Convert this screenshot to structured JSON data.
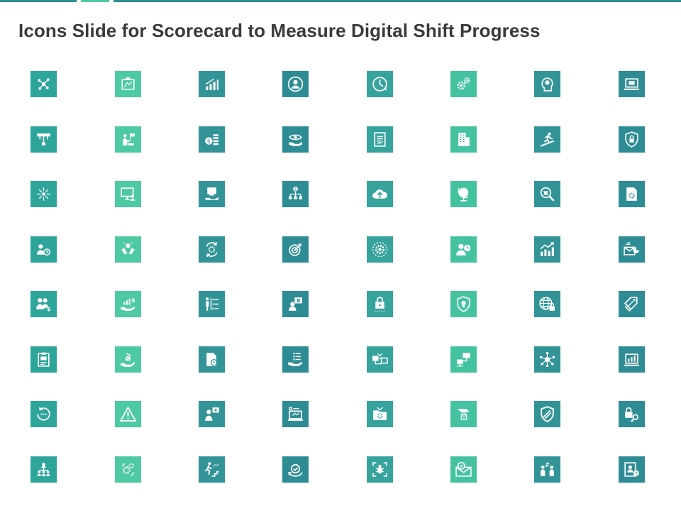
{
  "title": "Icons Slide for Scorecard to Measure Digital Shift Progress",
  "colors": {
    "teal_dark": "#2e8c95",
    "teal_mid": "#3aa39d",
    "mint": "#4dc9a4",
    "icon_fg": "#ffffff",
    "title_text": "#3a3a3a"
  },
  "column_colors": [
    "#2ea59b",
    "#4dc9a4",
    "#329497",
    "#2e8c95",
    "#36a39d",
    "#45c3a1",
    "#329497",
    "#2e8c95"
  ],
  "icons": [
    [
      "network-nodes-icon",
      "blueprint-board-icon",
      "bar-growth-icon",
      "person-circle-icon",
      "clock-refresh-icon",
      "gears-icon",
      "human-brain-icon",
      "laptop-document-icon"
    ],
    [
      "flowchart-icon",
      "presenter-flag-icon",
      "dollar-coins-icon",
      "eye-hand-icon",
      "report-document-icon",
      "office-building-icon",
      "runner-ramp-icon",
      "shield-lock-icon"
    ],
    [
      "sparkle-network-icon",
      "monitor-user-icon",
      "computer-hand-icon",
      "dollar-hierarchy-icon",
      "cloud-upload-icon",
      "globe-stand-icon",
      "bug-search-icon",
      "file-gear-icon"
    ],
    [
      "user-clock-icon",
      "hands-care-icon",
      "gear-refresh-icon",
      "target-icon",
      "gear-circle-icon",
      "user-clock-badge-icon",
      "growth-chart-icon",
      "email-chart-icon"
    ],
    [
      "users-dollar-icon",
      "hand-money-growth-icon",
      "person-checklist-icon",
      "user-x-board-icon",
      "padlock-password-icon",
      "shield-bulb-icon",
      "globe-lock-icon",
      "price-tags-icon"
    ],
    [
      "clipboard-report-icon",
      "hand-coin-icon",
      "file-clock-icon",
      "hand-checklist-icon",
      "connected-windows-icon",
      "network-computers-icon",
      "hub-network-icon",
      "laptop-chart-icon"
    ],
    [
      "circle-dots-icon",
      "warning-triangle-icon",
      "user-presentation-icon",
      "laptop-code-icon",
      "folder-settings-icon",
      "hand-lock-icon",
      "shield-stripe-icon",
      "lock-key-icon"
    ],
    [
      "team-hierarchy-icon",
      "gears-cycle-icon",
      "climbing-steps-icon",
      "rotate-check-icon",
      "bug-scan-icon",
      "mail-check-icon",
      "people-exchange-icon",
      "user-card-clock-icon"
    ]
  ]
}
